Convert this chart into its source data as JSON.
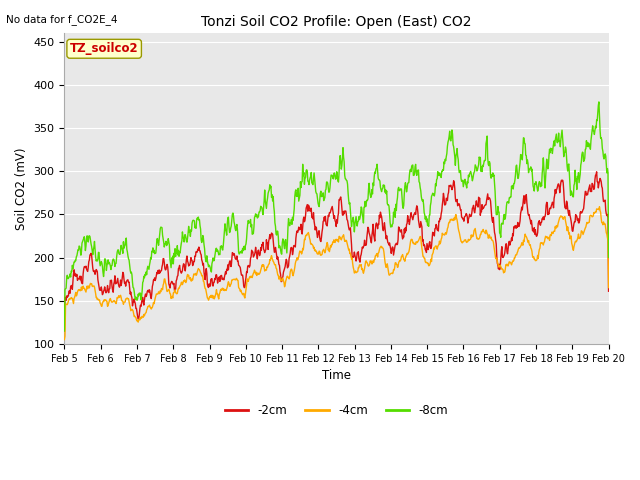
{
  "title": "Tonzi Soil CO2 Profile: Open (East) CO2",
  "subtitle": "No data for f_CO2E_4",
  "ylabel": "Soil CO2 (mV)",
  "xlabel": "Time",
  "legend_label": "TZ_soilco2",
  "ylim": [
    100,
    460
  ],
  "yticks": [
    100,
    150,
    200,
    250,
    300,
    350,
    400,
    450
  ],
  "series_labels": [
    "-2cm",
    "-4cm",
    "-8cm"
  ],
  "series_colors": [
    "#dd1111",
    "#ffaa00",
    "#55dd00"
  ],
  "background_color": "#e8e8e8",
  "plot_bg_color": "#e8e8e8",
  "fig_bg_color": "#ffffff",
  "grid_color": "#ffffff",
  "line_width": 1.0,
  "days": [
    "Feb 5",
    "Feb 6",
    "Feb 7",
    "Feb 8",
    "Feb 9",
    "Feb 10",
    "Feb 11",
    "Feb 12",
    "Feb 13",
    "Feb 14",
    "Feb 15",
    "Feb 16",
    "Feb 17",
    "Feb 18",
    "Feb 19",
    "Feb 20"
  ],
  "n_points": 960,
  "figsize": [
    6.4,
    4.8
  ],
  "dpi": 100
}
